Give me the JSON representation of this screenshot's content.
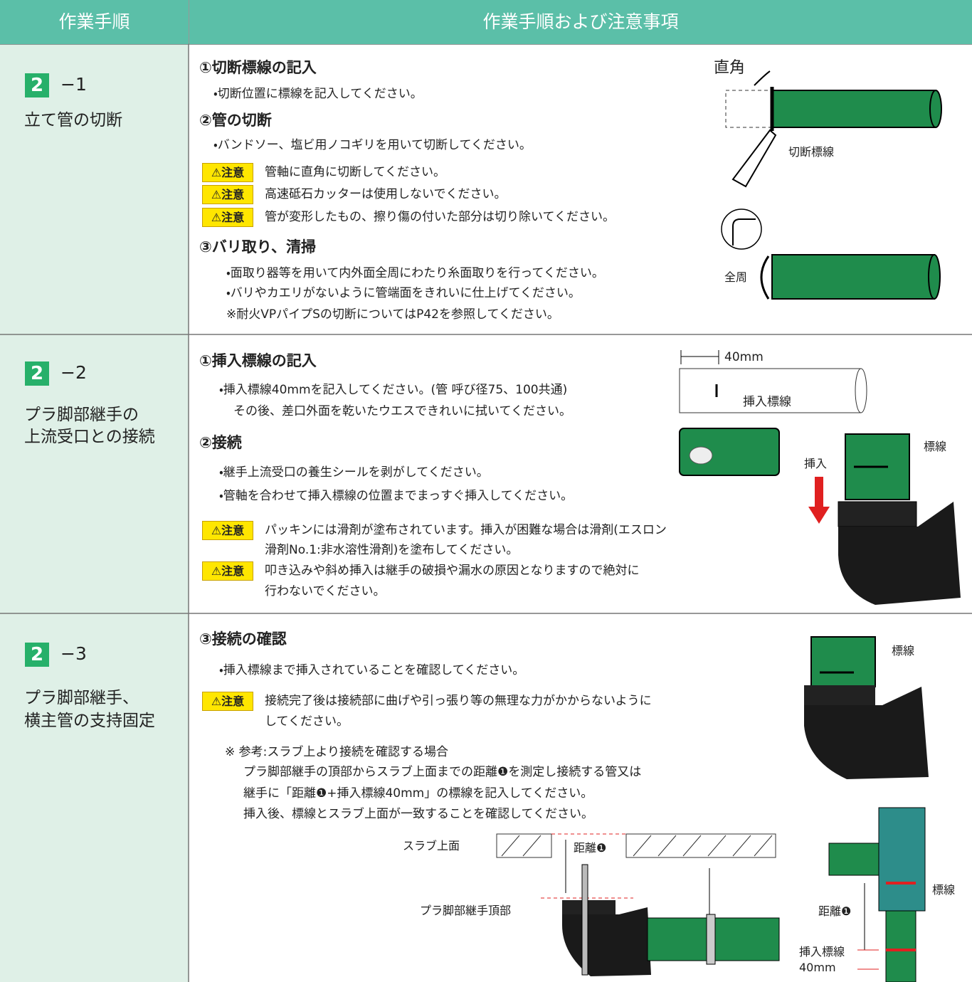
{
  "header": {
    "left": "作業手順",
    "right": "作業手順および注意事項"
  },
  "steps": [
    {
      "number": "2",
      "suffix": "−1",
      "title": [
        "立て管の切断"
      ],
      "sections": [
        {
          "heading": "①切断標線の記入",
          "lines": [
            "・切断位置に標線を記入してください。"
          ]
        },
        {
          "heading": "②管の切断",
          "lines": [
            "・バンドソー、塩ビ用ノコギリを用いて切断してください。"
          ],
          "cautions": [
            {
              "badge": "注意",
              "lines": [
                "管軸に直角に切断してください。"
              ]
            },
            {
              "badge": "注意",
              "lines": [
                "高速砥石カッターは使用しないでください。"
              ]
            },
            {
              "badge": "注意",
              "lines": [
                "管が変形したもの、擦り傷の付いた部分は切り除いてください。"
              ]
            }
          ]
        },
        {
          "heading": "③バリ取り、清掃",
          "lines": [
            "・面取り器等を用いて内外面全周にわたり糸面取りを行ってください。",
            "・バリやカエリがないように管端面をきれいに仕上げてください。",
            "※耐火VPパイプSの切断についてはP42を参照してください。"
          ]
        }
      ],
      "figure_labels": [
        "直角",
        "切断標線",
        "全周"
      ]
    },
    {
      "number": "2",
      "suffix": "−2",
      "title": [
        "プラ脚部継手の",
        "上流受口との接続"
      ],
      "sections": [
        {
          "heading": "①挿入標線の記入",
          "lines": [
            "・挿入標線40mmを記入してください。(管 呼び径75、100共通)",
            "その後、差口外面を乾いたウエスできれいに拭いてください。"
          ]
        },
        {
          "heading": "②接続",
          "lines": [
            "・継手上流受口の養生シールを剥がしてください。",
            "・管軸を合わせて挿入標線の位置までまっすぐ挿入してください。"
          ],
          "cautions": [
            {
              "badge": "注意",
              "lines": [
                "パッキンには滑剤が塗布されています。挿入が困難な場合は滑剤(エスロン",
                "滑剤No.1:非水溶性滑剤)を塗布してください。"
              ]
            },
            {
              "badge": "注意",
              "lines": [
                "叩き込みや斜め挿入は継手の破損や漏水の原因となりますので絶対に",
                "行わないでください。"
              ]
            }
          ]
        }
      ],
      "figure_labels": [
        "40mm",
        "挿入標線",
        "標線",
        "挿入"
      ]
    },
    {
      "number": "2",
      "suffix": "−3",
      "title": [
        "プラ脚部継手、",
        "横主管の支持固定"
      ],
      "sections": [
        {
          "heading": "③接続の確認",
          "lines": [
            "・挿入標線まで挿入されていることを確認してください。"
          ],
          "cautions": [
            {
              "badge": "注意",
              "lines": [
                "接続完了後は接続部に曲げや引っ張り等の無理な力がかからないように",
                "してください。"
              ]
            }
          ],
          "notes": [
            "※ 参考:スラブ上より接続を確認する場合",
            "プラ脚部継手の頂部からスラブ上面までの距離❶を測定し接続する管又は",
            "継手に「距離❶+挿入標線40mm」の標線を記入してください。",
            "挿入後、標線とスラブ上面が一致することを確認してください。"
          ]
        }
      ],
      "figure_labels": [
        "標線",
        "スラブ上面",
        "距離❶",
        "プラ脚部継手頂部",
        "標線",
        "距離❶",
        "挿入標線",
        "40mm"
      ]
    }
  ]
}
